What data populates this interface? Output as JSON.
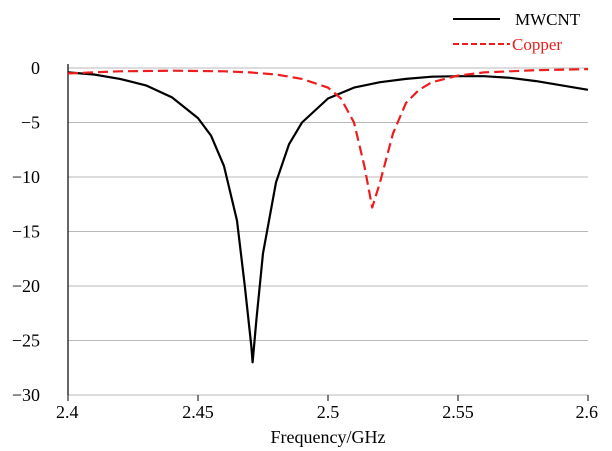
{
  "chart_data": {
    "type": "line",
    "title": "",
    "xlabel": "Frequency/GHz",
    "ylabel": "",
    "xlim": [
      2.4,
      2.6
    ],
    "ylim": [
      -30,
      0
    ],
    "xticks": [
      "2.4",
      "2.45",
      "2.5",
      "2.55",
      "2.6"
    ],
    "yticks": [
      "0",
      "−5",
      "−10",
      "−15",
      "−20",
      "−25",
      "−30"
    ],
    "grid": "horizontal",
    "legend_position": "top-right",
    "series": [
      {
        "name": "MWCNT",
        "color": "#000000",
        "style": "solid",
        "points": [
          [
            2.4,
            -0.4
          ],
          [
            2.41,
            -0.6
          ],
          [
            2.42,
            -1.0
          ],
          [
            2.43,
            -1.6
          ],
          [
            2.44,
            -2.7
          ],
          [
            2.45,
            -4.6
          ],
          [
            2.455,
            -6.2
          ],
          [
            2.46,
            -9.0
          ],
          [
            2.465,
            -14.0
          ],
          [
            2.468,
            -20.0
          ],
          [
            2.4705,
            -25.5
          ],
          [
            2.471,
            -27.0
          ],
          [
            2.4725,
            -23.0
          ],
          [
            2.475,
            -17.0
          ],
          [
            2.48,
            -10.5
          ],
          [
            2.485,
            -7.0
          ],
          [
            2.49,
            -5.0
          ],
          [
            2.5,
            -2.8
          ],
          [
            2.51,
            -1.8
          ],
          [
            2.52,
            -1.3
          ],
          [
            2.53,
            -1.0
          ],
          [
            2.54,
            -0.8
          ],
          [
            2.55,
            -0.75
          ],
          [
            2.56,
            -0.75
          ],
          [
            2.57,
            -0.9
          ],
          [
            2.58,
            -1.2
          ],
          [
            2.59,
            -1.6
          ],
          [
            2.6,
            -2.0
          ]
        ]
      },
      {
        "name": "Copper",
        "color": "#ee1c1c",
        "style": "dashed",
        "points": [
          [
            2.4,
            -0.5
          ],
          [
            2.42,
            -0.3
          ],
          [
            2.44,
            -0.25
          ],
          [
            2.46,
            -0.3
          ],
          [
            2.47,
            -0.4
          ],
          [
            2.48,
            -0.6
          ],
          [
            2.49,
            -1.0
          ],
          [
            2.5,
            -1.8
          ],
          [
            2.505,
            -2.8
          ],
          [
            2.51,
            -5.0
          ],
          [
            2.514,
            -9.0
          ],
          [
            2.517,
            -12.8
          ],
          [
            2.52,
            -10.5
          ],
          [
            2.525,
            -6.0
          ],
          [
            2.53,
            -3.2
          ],
          [
            2.535,
            -2.0
          ],
          [
            2.54,
            -1.3
          ],
          [
            2.55,
            -0.7
          ],
          [
            2.56,
            -0.4
          ],
          [
            2.57,
            -0.3
          ],
          [
            2.58,
            -0.2
          ],
          [
            2.6,
            -0.1
          ]
        ]
      }
    ]
  }
}
